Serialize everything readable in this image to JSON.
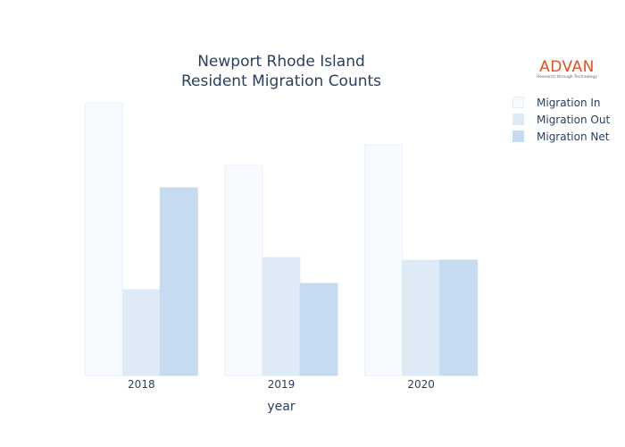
{
  "chart_data": {
    "type": "bar",
    "title_lines": [
      "Newport Rhode Island",
      "Resident Migration Counts"
    ],
    "xlabel": "year",
    "ylabel": "",
    "categories": [
      "2018",
      "2019",
      "2020"
    ],
    "series": [
      {
        "name": "Migration In",
        "values": [
          305,
          235,
          258
        ],
        "color": "#f7fbff"
      },
      {
        "name": "Migration Out",
        "values": [
          96,
          132,
          129
        ],
        "color": "#deebf7"
      },
      {
        "name": "Migration Net",
        "values": [
          210,
          103,
          129
        ],
        "color": "#c6dbef"
      }
    ],
    "ylim": [
      0,
      320
    ],
    "y_ticks_visible": false,
    "grid": false,
    "legend_position": "top-right"
  },
  "logo": {
    "word": "ADVAN",
    "tagline": "Research through Technology",
    "color": "#e0521d"
  }
}
